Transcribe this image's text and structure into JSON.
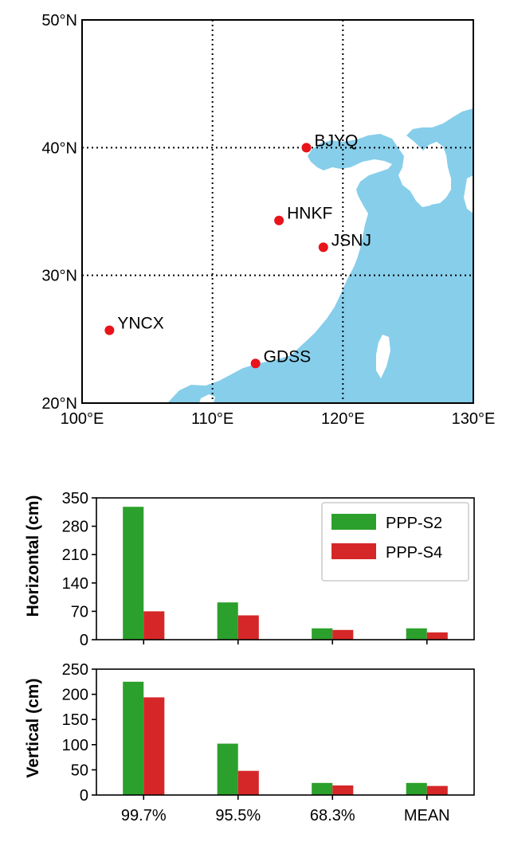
{
  "colors": {
    "sea": "#87ceeb",
    "land": "#ffffff",
    "station": "#e8141a",
    "series1": "#2ca02c",
    "series2": "#d62728",
    "axis": "#000000"
  },
  "map": {
    "lon_range": [
      100,
      130
    ],
    "lat_range": [
      20,
      50
    ],
    "xticks": [
      {
        "v": 100,
        "label": "100°E"
      },
      {
        "v": 110,
        "label": "110°E"
      },
      {
        "v": 120,
        "label": "120°E"
      },
      {
        "v": 130,
        "label": "130°E"
      }
    ],
    "yticks": [
      {
        "v": 20,
        "label": "20°N"
      },
      {
        "v": 30,
        "label": "30°N"
      },
      {
        "v": 40,
        "label": "40°N"
      },
      {
        "v": 50,
        "label": "50°N"
      }
    ],
    "gridlines": "dotted",
    "stations": [
      {
        "name": "BJYQ",
        "lon": 117.2,
        "lat": 40.0
      },
      {
        "name": "HNKF",
        "lon": 115.1,
        "lat": 34.3
      },
      {
        "name": "JSNJ",
        "lon": 118.5,
        "lat": 32.2
      },
      {
        "name": "YNCX",
        "lon": 102.1,
        "lat": 25.7
      },
      {
        "name": "GDSS",
        "lon": 113.3,
        "lat": 23.1
      }
    ]
  },
  "chart_data": [
    {
      "type": "bar",
      "categories": [
        "99.7%",
        "95.5%",
        "68.3%",
        "MEAN"
      ],
      "series": [
        {
          "name": "PPP-S2",
          "values": [
            328,
            92,
            28,
            28
          ]
        },
        {
          "name": "PPP-S4",
          "values": [
            70,
            60,
            24,
            18
          ]
        }
      ],
      "ylabel": "Horizontal (cm)",
      "ylim": [
        0,
        350
      ],
      "yticks": [
        0,
        70,
        140,
        210,
        280,
        350
      ],
      "legend": "top-right",
      "grid": false
    },
    {
      "type": "bar",
      "categories": [
        "99.7%",
        "95.5%",
        "68.3%",
        "MEAN"
      ],
      "series": [
        {
          "name": "PPP-S2",
          "values": [
            225,
            102,
            24,
            24
          ]
        },
        {
          "name": "PPP-S4",
          "values": [
            194,
            48,
            19,
            18
          ]
        }
      ],
      "ylabel": "Vertical (cm)",
      "ylim": [
        0,
        250
      ],
      "yticks": [
        0,
        50,
        100,
        150,
        200,
        250
      ],
      "grid": false
    }
  ]
}
